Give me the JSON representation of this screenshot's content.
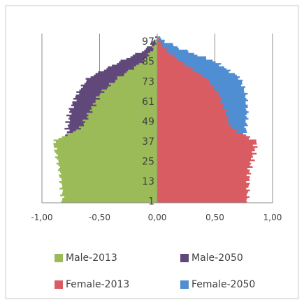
{
  "chart_data": {
    "type": "bar",
    "orientation": "horizontal",
    "subtype": "population-pyramid",
    "title": "",
    "xlabel": "",
    "ylabel": "",
    "xlim": [
      -1.0,
      1.0
    ],
    "x_tick_values": [
      -1.0,
      -0.5,
      0.0,
      0.5,
      1.0
    ],
    "x_tick_labels": [
      "-1,00",
      "-0,50",
      "0,00",
      "0,50",
      "1,00"
    ],
    "ylim": [
      0,
      100
    ],
    "y_tick_values": [
      1,
      13,
      25,
      37,
      49,
      61,
      73,
      85,
      97
    ],
    "y_tick_labels": [
      "1",
      "13",
      "25",
      "37",
      "49",
      "61",
      "73",
      "85",
      "97"
    ],
    "grid": "vertical major gridlines",
    "legend_position": "bottom",
    "colors": {
      "male_2013": "#9bbb59",
      "male_2050": "#60497a",
      "female_2013": "#d95c63",
      "female_2050": "#4f8ed2",
      "frame": "#c8c8c8",
      "grid": "#8c8c8c",
      "axis_text": "#404040"
    },
    "age_points": [
      0,
      10,
      20,
      30,
      37,
      45,
      55,
      65,
      75,
      85,
      92,
      97,
      100
    ],
    "series": [
      {
        "name": "Male-2013",
        "values": [
          -0.82,
          -0.83,
          -0.85,
          -0.88,
          -0.9,
          -0.66,
          -0.58,
          -0.5,
          -0.34,
          -0.12,
          -0.04,
          -0.01,
          0.0
        ]
      },
      {
        "name": "Male-2050",
        "values": [
          -0.74,
          -0.75,
          -0.76,
          -0.77,
          -0.78,
          -0.78,
          -0.76,
          -0.7,
          -0.6,
          -0.32,
          -0.1,
          -0.03,
          0.0
        ]
      },
      {
        "name": "Female-2013",
        "values": [
          0.78,
          0.79,
          0.8,
          0.84,
          0.86,
          0.64,
          0.59,
          0.54,
          0.42,
          0.2,
          0.07,
          0.02,
          0.0
        ]
      },
      {
        "name": "Female-2050",
        "values": [
          0.72,
          0.73,
          0.74,
          0.74,
          0.76,
          0.77,
          0.78,
          0.77,
          0.72,
          0.5,
          0.22,
          0.07,
          0.0
        ]
      }
    ],
    "legend": [
      "Male-2013",
      "Male-2050",
      "Female-2013",
      "Female-2050"
    ]
  }
}
